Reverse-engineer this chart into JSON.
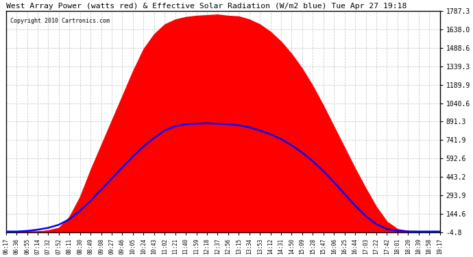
{
  "title": "West Array Power (watts red) & Effective Solar Radiation (W/m2 blue) Tue Apr 27 19:18",
  "copyright": "Copyright 2010 Cartronics.com",
  "ylim": [
    -4.8,
    1787.3
  ],
  "yticks": [
    -4.8,
    144.6,
    293.9,
    443.2,
    592.6,
    741.9,
    891.3,
    1040.6,
    1189.9,
    1339.3,
    1488.6,
    1638.0,
    1787.3
  ],
  "ytick_labels": [
    "-4.8",
    "144.6",
    "293.9",
    "443.2",
    "592.6",
    "741.9",
    "891.3",
    "1040.6",
    "1189.9",
    "1339.3",
    "1488.6",
    "1638.0",
    "1787.3"
  ],
  "x_labels": [
    "06:17",
    "06:36",
    "06:55",
    "07:14",
    "07:32",
    "07:52",
    "08:11",
    "08:30",
    "08:49",
    "09:08",
    "09:27",
    "09:46",
    "10:05",
    "10:24",
    "10:43",
    "11:02",
    "11:21",
    "11:40",
    "11:59",
    "12:18",
    "12:37",
    "12:56",
    "13:15",
    "13:34",
    "13:53",
    "14:12",
    "14:31",
    "14:50",
    "15:09",
    "15:28",
    "15:47",
    "16:06",
    "16:25",
    "16:44",
    "17:03",
    "17:22",
    "17:42",
    "18:01",
    "18:20",
    "18:39",
    "18:58",
    "19:17"
  ],
  "red_profile": [
    0,
    0,
    0,
    0,
    10,
    30,
    120,
    280,
    500,
    700,
    900,
    1100,
    1300,
    1480,
    1600,
    1680,
    1720,
    1740,
    1750,
    1755,
    1760,
    1750,
    1745,
    1720,
    1680,
    1620,
    1540,
    1440,
    1320,
    1180,
    1020,
    850,
    680,
    510,
    350,
    200,
    80,
    20,
    5,
    0,
    0,
    0
  ],
  "blue_profile": [
    0,
    0,
    5,
    15,
    30,
    55,
    100,
    170,
    250,
    340,
    430,
    520,
    610,
    690,
    760,
    820,
    855,
    870,
    875,
    878,
    875,
    870,
    862,
    845,
    820,
    790,
    750,
    700,
    640,
    570,
    490,
    400,
    305,
    210,
    125,
    60,
    20,
    5,
    1,
    0,
    0,
    0
  ],
  "bg_color": "#ffffff",
  "plot_bg_color": "#ffffff",
  "grid_color": "#cccccc",
  "red_fill_color": "#ff0000",
  "blue_line_color": "#0000ff"
}
